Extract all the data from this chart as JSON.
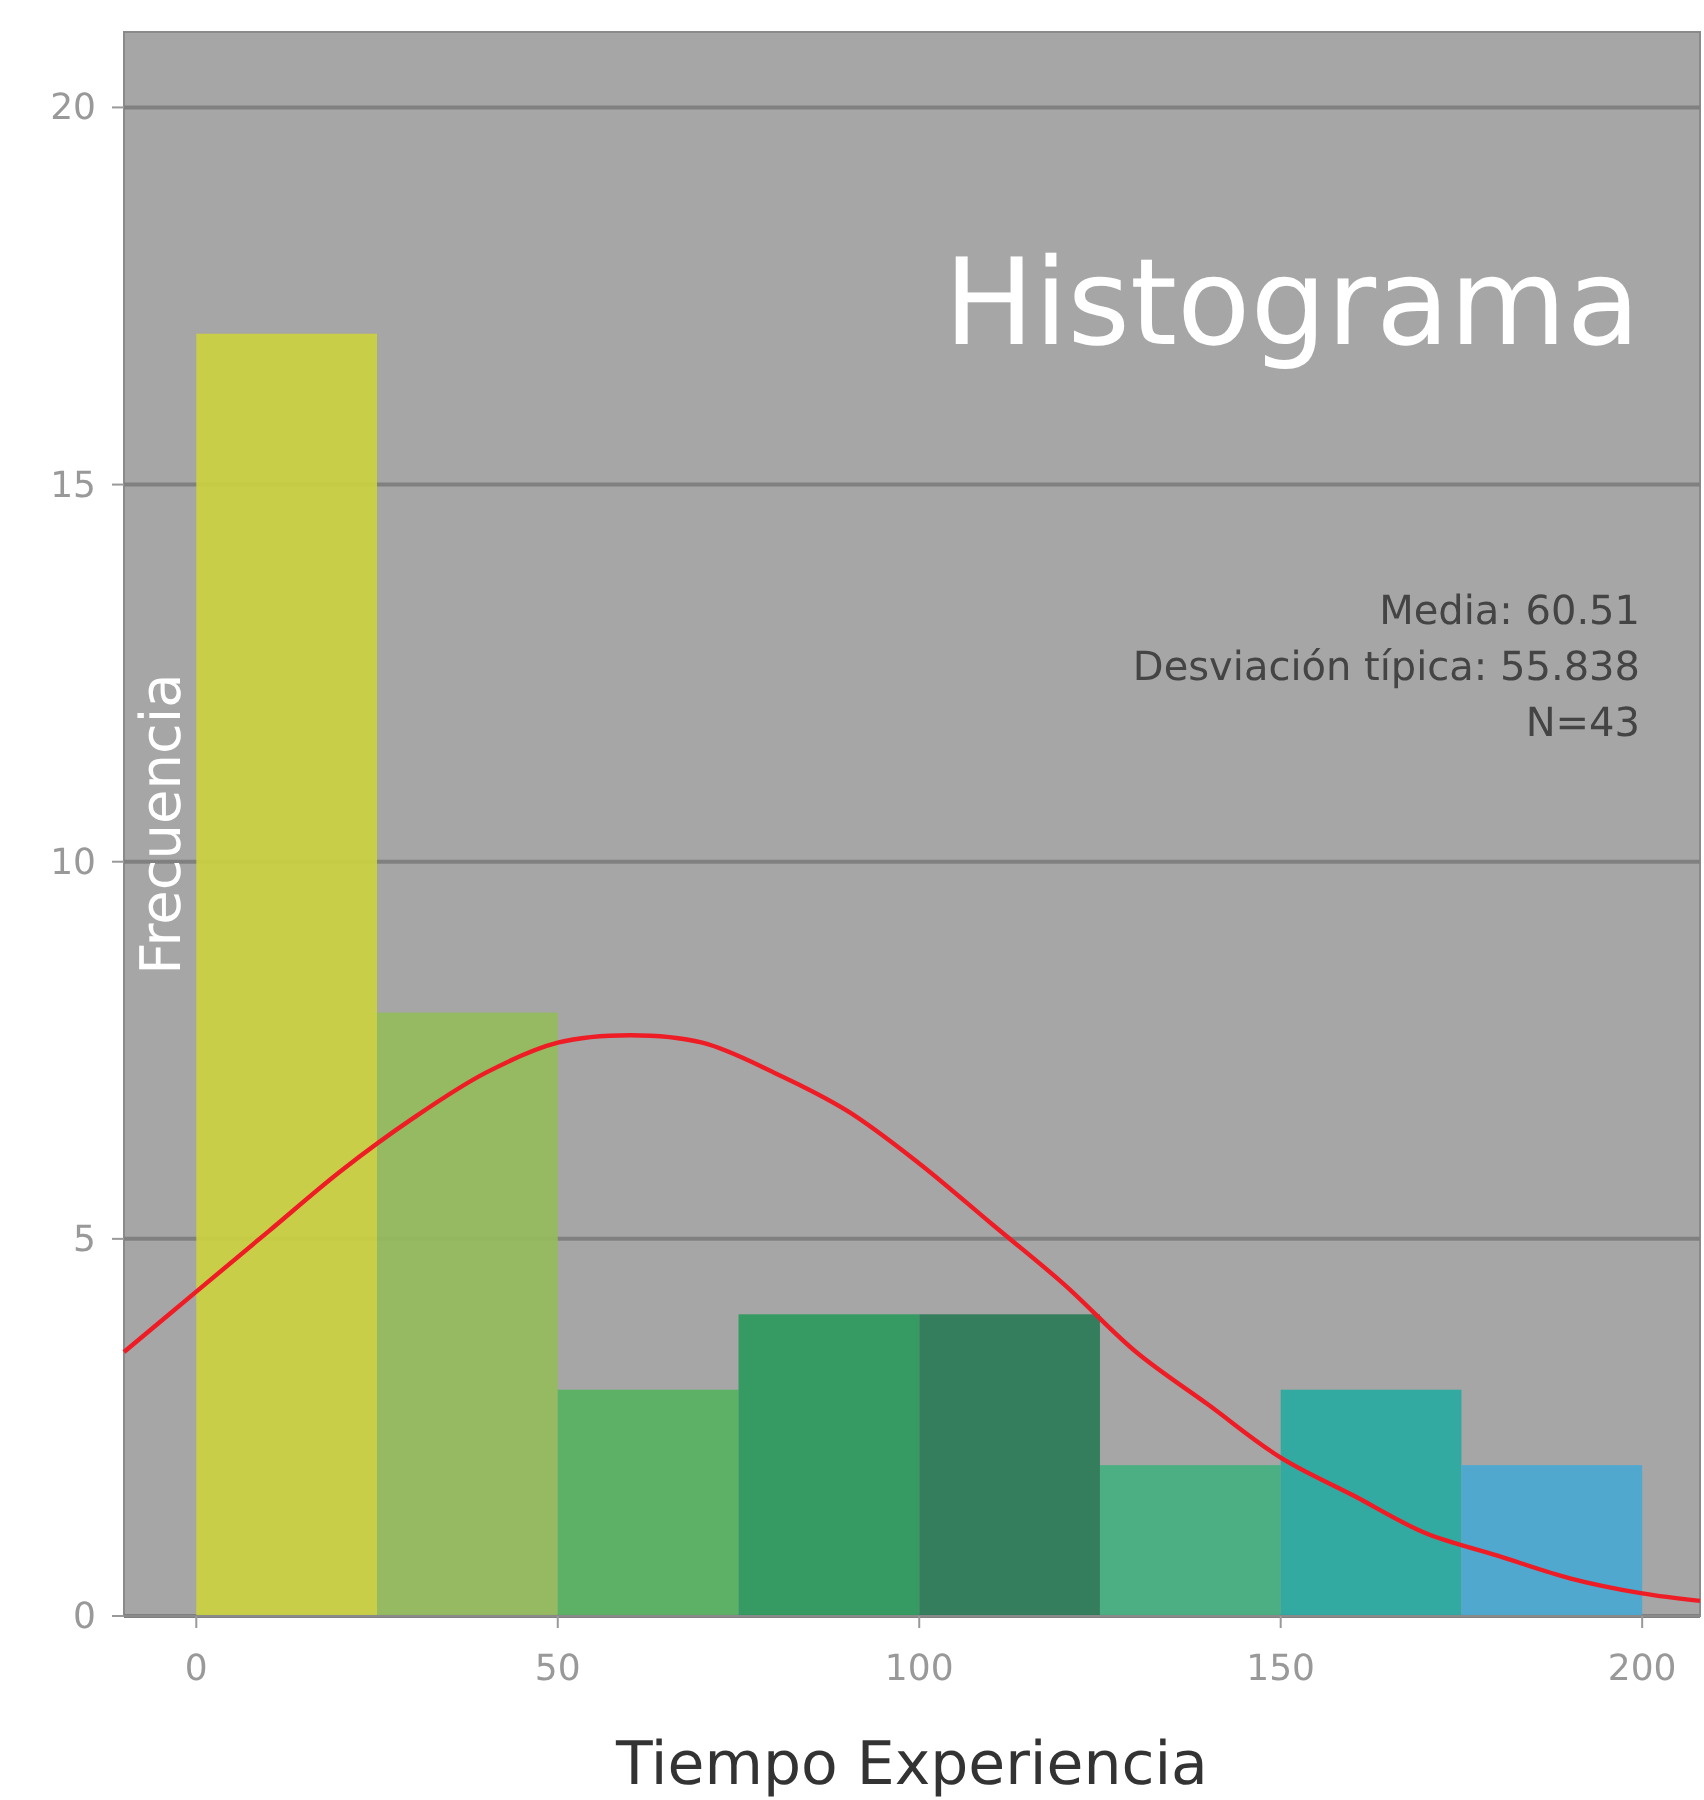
{
  "chart_data": {
    "type": "histogram",
    "title": "Histograma",
    "xlabel": "Tiempo Experiencia",
    "ylabel": "Frecuencia",
    "bins": [
      0,
      25,
      50,
      75,
      100,
      125,
      150,
      175,
      200
    ],
    "values": [
      17,
      8,
      3,
      4,
      4,
      2,
      3,
      2
    ],
    "colors": [
      "#cdd33f",
      "#93bd5a",
      "#54b25f",
      "#2a9a5c",
      "#287a55",
      "#43b07f",
      "#27aba1",
      "#47a9d4"
    ],
    "series": [
      {
        "type": "line",
        "color": "#ee1c25",
        "x": [
          -10,
          0,
          10,
          20,
          30,
          40,
          50,
          60,
          70,
          80,
          90,
          100,
          110,
          120,
          130,
          140,
          150,
          160,
          170,
          180,
          190,
          200,
          208
        ],
        "values": [
          3.5,
          4.3,
          5.1,
          5.9,
          6.6,
          7.2,
          7.6,
          7.7,
          7.6,
          7.2,
          6.7,
          6.0,
          5.2,
          4.4,
          3.5,
          2.8,
          2.1,
          1.6,
          1.1,
          0.8,
          0.5,
          0.3,
          0.2
        ]
      }
    ],
    "annotations": [
      "Media: 60.51",
      "Desviación típica: 55.838",
      "N=43"
    ],
    "xlim": [
      -10,
      208
    ],
    "xticks": [
      0,
      50,
      100,
      150,
      200
    ],
    "ylim": [
      0,
      21
    ],
    "yticks": [
      0,
      5,
      10,
      15,
      20
    ],
    "grid": "y"
  }
}
